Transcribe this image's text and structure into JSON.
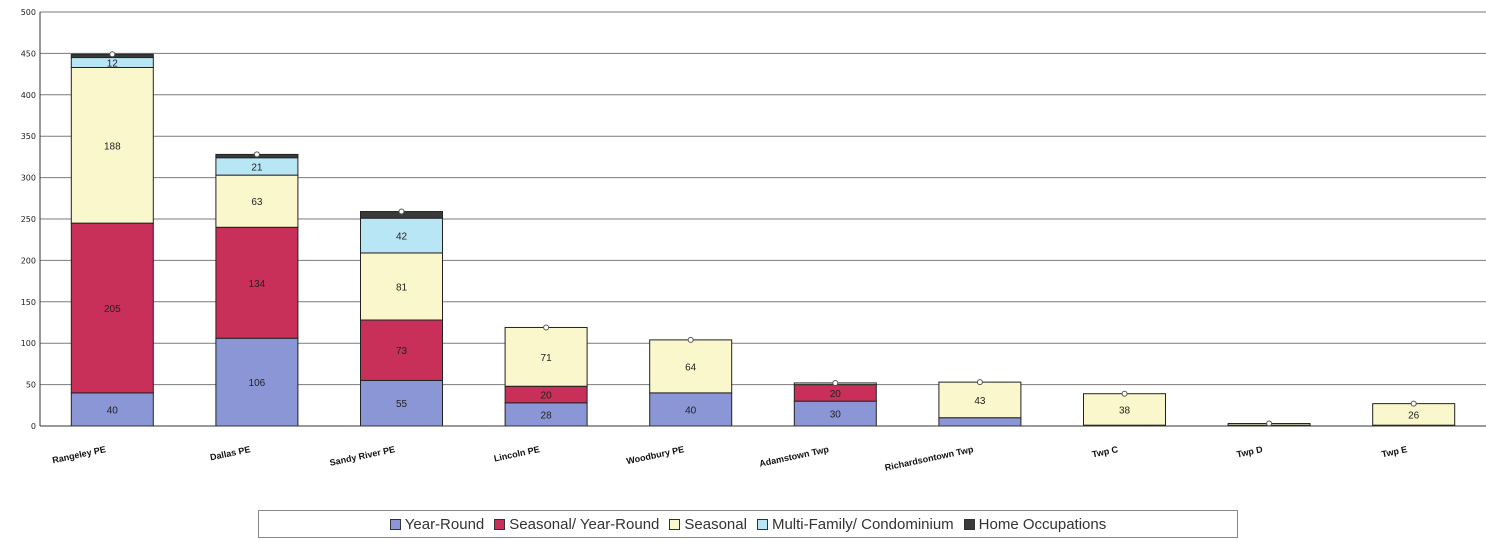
{
  "chart_data": {
    "type": "bar",
    "stacked": true,
    "categories": [
      "Rangeley PE",
      "Dallas PE",
      "Sandy River PE",
      "Lincoln PE",
      "Woodbury PE",
      "Adamstown Twp",
      "Richardsontown Twp",
      "Twp C",
      "Twp D",
      "Twp E"
    ],
    "series": [
      {
        "name": "Year-Round",
        "color": "#8b96d6",
        "values": [
          40,
          106,
          55,
          28,
          40,
          30,
          10,
          1,
          1,
          1
        ]
      },
      {
        "name": "Seasonal/ Year-Round",
        "color": "#c8305a",
        "values": [
          205,
          134,
          73,
          20,
          0,
          20,
          0,
          0,
          0,
          0
        ]
      },
      {
        "name": "Seasonal",
        "color": "#fbf7cc",
        "values": [
          188,
          63,
          81,
          71,
          64,
          2,
          43,
          38,
          2,
          26
        ]
      },
      {
        "name": "Multi-Family/ Condominium",
        "color": "#b9e6f5",
        "values": [
          12,
          21,
          42,
          0,
          0,
          0,
          0,
          0,
          0,
          0
        ]
      },
      {
        "name": "Home Occupations",
        "color": "#3a3a3a",
        "values": [
          4,
          4,
          8,
          0,
          0,
          0,
          0,
          0,
          0,
          0
        ]
      }
    ],
    "data_labels": [
      [
        "40",
        "205",
        "188",
        "12",
        ""
      ],
      [
        "106",
        "134",
        "63",
        "21",
        ""
      ],
      [
        "55",
        "73",
        "81",
        "42",
        ""
      ],
      [
        "28",
        "20",
        "71",
        "",
        ""
      ],
      [
        "40",
        "",
        "64",
        "",
        ""
      ],
      [
        "30",
        "20",
        "",
        "",
        ""
      ],
      [
        "",
        "",
        "43",
        "",
        ""
      ],
      [
        "",
        "",
        "38",
        "",
        ""
      ],
      [
        "",
        "",
        "",
        "",
        ""
      ],
      [
        "",
        "",
        "26",
        "",
        ""
      ]
    ],
    "y_ticks": [
      "0",
      "50",
      "100",
      "150",
      "200",
      "250",
      "300",
      "350",
      "400",
      "450",
      "500"
    ],
    "ylim": [
      0,
      500
    ],
    "grid": true,
    "legend_position": "bottom",
    "title": "",
    "xlabel": "",
    "ylabel": ""
  }
}
